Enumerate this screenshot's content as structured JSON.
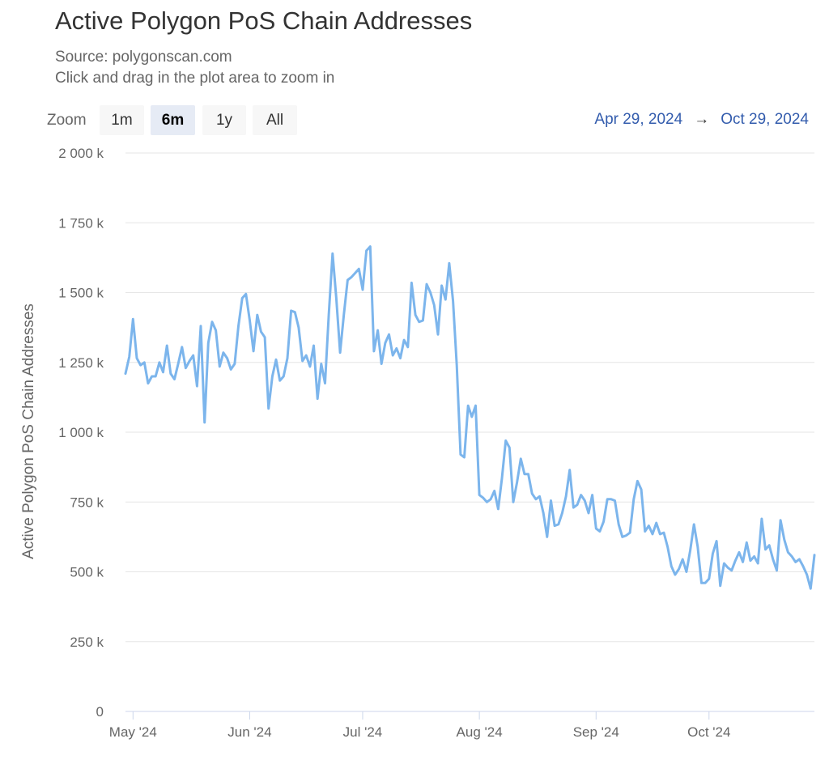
{
  "title": "Active Polygon PoS Chain Addresses",
  "subtitles": [
    "Source: polygonscan.com",
    "Click and drag in the plot area to zoom in"
  ],
  "range_selector": {
    "label": "Zoom",
    "buttons": [
      "1m",
      "6m",
      "1y",
      "All"
    ],
    "selected": "6m",
    "from": "Apr 29, 2024",
    "arrow": "→",
    "to": "Oct 29, 2024"
  },
  "colors": {
    "series": "#7cb5ec",
    "grid": "#e6e6e6",
    "axis": "#ccd6eb",
    "text": "#666666",
    "range": "#335cad"
  },
  "chart_data": {
    "type": "line",
    "title": "Active Polygon PoS Chain Addresses",
    "ylabel": "Active Polygon PoS Chain Addresses",
    "xlabel": "",
    "x_ticks": [
      {
        "date": "2024-05-01",
        "label": "May '24"
      },
      {
        "date": "2024-06-01",
        "label": "Jun '24"
      },
      {
        "date": "2024-07-01",
        "label": "Jul '24"
      },
      {
        "date": "2024-08-01",
        "label": "Aug '24"
      },
      {
        "date": "2024-09-01",
        "label": "Sep '24"
      },
      {
        "date": "2024-10-01",
        "label": "Oct '24"
      }
    ],
    "y_ticks": [
      {
        "value": 0,
        "label": "0"
      },
      {
        "value": 250000,
        "label": "250 k"
      },
      {
        "value": 500000,
        "label": "500 k"
      },
      {
        "value": 750000,
        "label": "750 k"
      },
      {
        "value": 1000000,
        "label": "1 000 k"
      },
      {
        "value": 1250000,
        "label": "1 250 k"
      },
      {
        "value": 1500000,
        "label": "1 500 k"
      },
      {
        "value": 1750000,
        "label": "1 750 k"
      },
      {
        "value": 2000000,
        "label": "2 000 k"
      }
    ],
    "xlim": [
      "2024-04-29",
      "2024-10-29"
    ],
    "ylim": [
      0,
      2000000
    ],
    "grid": "horizontal",
    "series": [
      {
        "x": [
          "2024-04-29",
          "2024-04-30",
          "2024-05-01",
          "2024-05-02",
          "2024-05-03",
          "2024-05-04",
          "2024-05-05",
          "2024-05-06",
          "2024-05-07",
          "2024-05-08",
          "2024-05-09",
          "2024-05-10",
          "2024-05-11",
          "2024-05-12",
          "2024-05-13",
          "2024-05-14",
          "2024-05-15",
          "2024-05-16",
          "2024-05-17",
          "2024-05-18",
          "2024-05-19",
          "2024-05-20",
          "2024-05-21",
          "2024-05-22",
          "2024-05-23",
          "2024-05-24",
          "2024-05-25",
          "2024-05-26",
          "2024-05-27",
          "2024-05-28",
          "2024-05-29",
          "2024-05-30",
          "2024-05-31",
          "2024-06-01",
          "2024-06-02",
          "2024-06-03",
          "2024-06-04",
          "2024-06-05",
          "2024-06-06",
          "2024-06-07",
          "2024-06-08",
          "2024-06-09",
          "2024-06-10",
          "2024-06-11",
          "2024-06-12",
          "2024-06-13",
          "2024-06-14",
          "2024-06-15",
          "2024-06-16",
          "2024-06-17",
          "2024-06-18",
          "2024-06-19",
          "2024-06-20",
          "2024-06-21",
          "2024-06-22",
          "2024-06-23",
          "2024-06-24",
          "2024-06-25",
          "2024-06-26",
          "2024-06-27",
          "2024-06-28",
          "2024-06-29",
          "2024-06-30",
          "2024-07-01",
          "2024-07-02",
          "2024-07-03",
          "2024-07-04",
          "2024-07-05",
          "2024-07-06",
          "2024-07-07",
          "2024-07-08",
          "2024-07-09",
          "2024-07-10",
          "2024-07-11",
          "2024-07-12",
          "2024-07-13",
          "2024-07-14",
          "2024-07-15",
          "2024-07-16",
          "2024-07-17",
          "2024-07-18",
          "2024-07-19",
          "2024-07-20",
          "2024-07-21",
          "2024-07-22",
          "2024-07-23",
          "2024-07-24",
          "2024-07-25",
          "2024-07-26",
          "2024-07-27",
          "2024-07-28",
          "2024-07-29",
          "2024-07-30",
          "2024-07-31",
          "2024-08-01",
          "2024-08-02",
          "2024-08-03",
          "2024-08-04",
          "2024-08-05",
          "2024-08-06",
          "2024-08-07",
          "2024-08-08",
          "2024-08-09",
          "2024-08-10",
          "2024-08-11",
          "2024-08-12",
          "2024-08-13",
          "2024-08-14",
          "2024-08-15",
          "2024-08-16",
          "2024-08-17",
          "2024-08-18",
          "2024-08-19",
          "2024-08-20",
          "2024-08-21",
          "2024-08-22",
          "2024-08-23",
          "2024-08-24",
          "2024-08-25",
          "2024-08-26",
          "2024-08-27",
          "2024-08-28",
          "2024-08-29",
          "2024-08-30",
          "2024-08-31",
          "2024-09-01",
          "2024-09-02",
          "2024-09-03",
          "2024-09-04",
          "2024-09-05",
          "2024-09-06",
          "2024-09-07",
          "2024-09-08",
          "2024-09-09",
          "2024-09-10",
          "2024-09-11",
          "2024-09-12",
          "2024-09-13",
          "2024-09-14",
          "2024-09-15",
          "2024-09-16",
          "2024-09-17",
          "2024-09-18",
          "2024-09-19",
          "2024-09-20",
          "2024-09-21",
          "2024-09-22",
          "2024-09-23",
          "2024-09-24",
          "2024-09-25",
          "2024-09-26",
          "2024-09-27",
          "2024-09-28",
          "2024-09-29",
          "2024-09-30",
          "2024-10-01",
          "2024-10-02",
          "2024-10-03",
          "2024-10-04",
          "2024-10-05",
          "2024-10-06",
          "2024-10-07",
          "2024-10-08",
          "2024-10-09",
          "2024-10-10",
          "2024-10-11",
          "2024-10-12",
          "2024-10-13",
          "2024-10-14",
          "2024-10-15",
          "2024-10-16",
          "2024-10-17",
          "2024-10-18",
          "2024-10-19",
          "2024-10-20",
          "2024-10-21",
          "2024-10-22",
          "2024-10-23",
          "2024-10-24",
          "2024-10-25",
          "2024-10-26",
          "2024-10-27",
          "2024-10-28",
          "2024-10-29"
        ],
        "y": [
          1210000,
          1270000,
          1405000,
          1265000,
          1240000,
          1250000,
          1175000,
          1200000,
          1200000,
          1250000,
          1215000,
          1310000,
          1210000,
          1190000,
          1245000,
          1305000,
          1230000,
          1255000,
          1275000,
          1165000,
          1380000,
          1035000,
          1320000,
          1395000,
          1365000,
          1235000,
          1285000,
          1265000,
          1225000,
          1245000,
          1380000,
          1480000,
          1495000,
          1400000,
          1290000,
          1420000,
          1360000,
          1340000,
          1085000,
          1200000,
          1260000,
          1185000,
          1200000,
          1265000,
          1435000,
          1430000,
          1375000,
          1255000,
          1275000,
          1235000,
          1310000,
          1120000,
          1245000,
          1175000,
          1420000,
          1640000,
          1480000,
          1285000,
          1420000,
          1545000,
          1555000,
          1570000,
          1585000,
          1510000,
          1650000,
          1665000,
          1290000,
          1365000,
          1245000,
          1320000,
          1350000,
          1275000,
          1300000,
          1265000,
          1330000,
          1305000,
          1535000,
          1420000,
          1395000,
          1400000,
          1530000,
          1500000,
          1455000,
          1350000,
          1525000,
          1475000,
          1605000,
          1470000,
          1240000,
          920000,
          910000,
          1095000,
          1055000,
          1095000,
          775000,
          765000,
          750000,
          760000,
          790000,
          725000,
          835000,
          970000,
          945000,
          750000,
          820000,
          905000,
          850000,
          850000,
          780000,
          760000,
          770000,
          710000,
          625000,
          755000,
          665000,
          670000,
          710000,
          770000,
          865000,
          730000,
          740000,
          775000,
          755000,
          710000,
          775000,
          655000,
          645000,
          680000,
          760000,
          760000,
          755000,
          670000,
          625000,
          630000,
          640000,
          760000,
          825000,
          795000,
          645000,
          665000,
          635000,
          675000,
          635000,
          640000,
          590000,
          520000,
          490000,
          510000,
          545000,
          500000,
          575000,
          670000,
          590000,
          460000,
          460000,
          475000,
          565000,
          610000,
          450000,
          530000,
          515000,
          505000,
          540000,
          570000,
          535000,
          605000,
          540000,
          555000,
          530000,
          690000,
          580000,
          595000,
          545000,
          505000,
          685000,
          615000,
          570000,
          555000,
          535000,
          545000,
          520000,
          490000,
          440000,
          560000
        ]
      }
    ]
  }
}
